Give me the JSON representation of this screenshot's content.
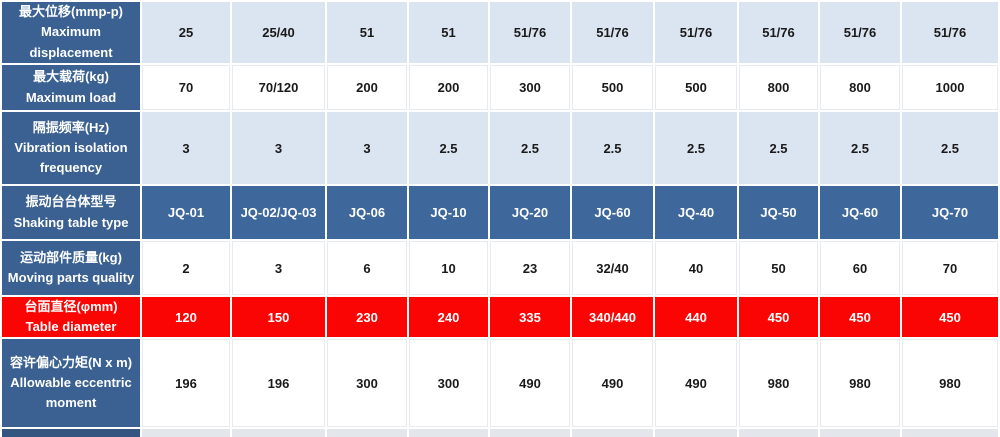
{
  "colors": {
    "header_blue": "#3A6191",
    "model_row_blue": "#3E689B",
    "light_row": "#DBE4F1",
    "red": "#FB0404",
    "white_row_line": "#E7EAEF",
    "cutoff_blue": "#33557F",
    "cutoff_gray": "#E3E6EB"
  },
  "table": {
    "columns": 10,
    "rows": [
      {
        "header_zh": "最大位移(mmp-p)",
        "header_en": "Maximum displacement",
        "style": "light",
        "values": [
          "25",
          "25/40",
          "51",
          "51",
          "51/76",
          "51/76",
          "51/76",
          "51/76",
          "51/76",
          "51/76"
        ]
      },
      {
        "header_zh": "最大载荷(kg)",
        "header_en": "Maximum load",
        "style": "white",
        "values": [
          "70",
          "70/120",
          "200",
          "200",
          "300",
          "500",
          "500",
          "800",
          "800",
          "1000"
        ]
      },
      {
        "header_zh": "隔振频率(Hz)",
        "header_en": "Vibration isolation frequency",
        "style": "light",
        "values": [
          "3",
          "3",
          "3",
          "2.5",
          "2.5",
          "2.5",
          "2.5",
          "2.5",
          "2.5",
          "2.5"
        ]
      },
      {
        "header_zh": "振动台台体型号",
        "header_en": "Shaking table type",
        "style": "blue",
        "values": [
          "JQ-01",
          "JQ-02/JQ-03",
          "JQ-06",
          "JQ-10",
          "JQ-20",
          "JQ-60",
          "JQ-40",
          "JQ-50",
          "JQ-60",
          "JQ-70"
        ]
      },
      {
        "header_zh": "运动部件质量(kg)",
        "header_en": "Moving parts quality",
        "style": "white",
        "values": [
          "2",
          "3",
          "6",
          "10",
          "23",
          "32/40",
          "40",
          "50",
          "60",
          "70"
        ]
      },
      {
        "header_zh": "台面直径(φmm)",
        "header_en": "Table diameter",
        "style": "red",
        "values": [
          "120",
          "150",
          "230",
          "240",
          "335",
          "340/440",
          "440",
          "450",
          "450",
          "450"
        ]
      },
      {
        "header_zh": "容许偏心力矩(N x m)",
        "header_en": "Allowable eccentric moment",
        "style": "white",
        "values": [
          "196",
          "196",
          "300",
          "300",
          "490",
          "490",
          "490",
          "980",
          "980",
          "980"
        ]
      },
      {
        "header_zh": "",
        "header_en": "",
        "style": "cutoff",
        "values": [
          "",
          "",
          "",
          "",
          "",
          "",
          "",
          "",
          "",
          ""
        ]
      }
    ]
  },
  "chart_data": {
    "type": "table",
    "title": "",
    "row_headers": [
      "最大位移(mmp-p) Maximum displacement",
      "最大载荷(kg) Maximum load",
      "隔振频率(Hz) Vibration isolation frequency",
      "振动台台体型号 Shaking table type",
      "运动部件质量(kg) Moving parts quality",
      "台面直径(φmm) Table diameter",
      "容许偏心力矩(N x m) Allowable eccentric moment"
    ],
    "rows": [
      [
        "25",
        "25/40",
        "51",
        "51",
        "51/76",
        "51/76",
        "51/76",
        "51/76",
        "51/76",
        "51/76"
      ],
      [
        "70",
        "70/120",
        "200",
        "200",
        "300",
        "500",
        "500",
        "800",
        "800",
        "1000"
      ],
      [
        "3",
        "3",
        "3",
        "2.5",
        "2.5",
        "2.5",
        "2.5",
        "2.5",
        "2.5",
        "2.5"
      ],
      [
        "JQ-01",
        "JQ-02/JQ-03",
        "JQ-06",
        "JQ-10",
        "JQ-20",
        "JQ-60",
        "JQ-40",
        "JQ-50",
        "JQ-60",
        "JQ-70"
      ],
      [
        "2",
        "3",
        "6",
        "10",
        "23",
        "32/40",
        "40",
        "50",
        "60",
        "70"
      ],
      [
        "120",
        "150",
        "230",
        "240",
        "335",
        "340/440",
        "440",
        "450",
        "450",
        "450"
      ],
      [
        "196",
        "196",
        "300",
        "300",
        "490",
        "490",
        "490",
        "980",
        "980",
        "980"
      ]
    ]
  }
}
